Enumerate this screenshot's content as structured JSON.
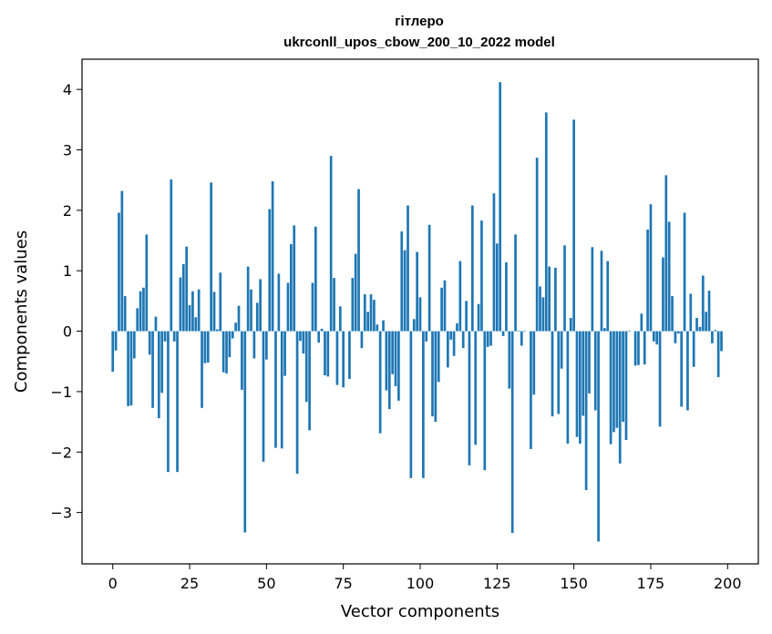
{
  "chart_data": {
    "type": "bar",
    "title_line1": "гітлеро",
    "title_line2": "ukrconll_upos_cbow_200_10_2022 model",
    "xlabel": "Vector components",
    "ylabel": "Components values",
    "xlim": [
      -10,
      210
    ],
    "ylim": [
      -3.85,
      4.5
    ],
    "xticks": [
      0,
      25,
      50,
      75,
      100,
      125,
      150,
      175,
      200
    ],
    "yticks": [
      -3,
      -2,
      -1,
      0,
      1,
      2,
      3,
      4
    ],
    "ytick_labels": [
      "−3",
      "−2",
      "−1",
      "0",
      "1",
      "2",
      "3",
      "4"
    ],
    "bar_color": "#1f77b4",
    "grid": false,
    "values": [
      -0.67,
      -0.32,
      1.96,
      2.32,
      0.58,
      -1.24,
      -1.23,
      -0.45,
      0.38,
      0.66,
      0.72,
      1.6,
      -0.39,
      -1.27,
      0.24,
      -1.44,
      -1.02,
      -0.17,
      -2.33,
      2.51,
      -0.17,
      -2.33,
      0.89,
      1.11,
      1.4,
      0.43,
      0.66,
      0.23,
      0.69,
      -1.27,
      -0.53,
      -0.52,
      2.46,
      0.65,
      0.03,
      0.97,
      -0.68,
      -0.7,
      -0.43,
      -0.12,
      0.14,
      0.42,
      -0.97,
      -3.33,
      1.07,
      0.69,
      -0.45,
      0.47,
      0.86,
      -2.16,
      -0.47,
      2.02,
      2.48,
      -1.93,
      0.95,
      -1.94,
      -0.74,
      0.8,
      1.44,
      1.75,
      -2.36,
      -0.16,
      -0.37,
      -1.17,
      -1.64,
      0.8,
      1.73,
      -0.19,
      0.04,
      -0.73,
      -0.75,
      2.9,
      0.88,
      -0.89,
      0.41,
      -0.93,
      0.0,
      -0.79,
      0.88,
      1.28,
      2.35,
      -0.28,
      0.61,
      0.32,
      0.61,
      0.52,
      0.11,
      -1.69,
      0.18,
      -0.98,
      -1.29,
      -0.71,
      -0.91,
      -1.15,
      1.65,
      1.34,
      2.08,
      -2.43,
      0.2,
      1.31,
      0.56,
      -2.43,
      -0.17,
      1.76,
      -1.41,
      -1.5,
      -0.84,
      0.72,
      0.84,
      -0.6,
      -0.14,
      -0.41,
      0.13,
      1.16,
      -0.28,
      0.5,
      -2.22,
      2.08,
      -1.88,
      0.45,
      1.83,
      -2.3,
      -0.26,
      -0.24,
      2.28,
      1.45,
      4.12,
      -0.08,
      1.14,
      -0.95,
      -3.34,
      1.6,
      0.01,
      -0.24,
      0.01,
      0.0,
      -1.95,
      -1.05,
      2.87,
      0.74,
      0.56,
      3.62,
      1.07,
      -1.41,
      1.05,
      -1.37,
      -0.62,
      1.42,
      -1.86,
      0.22,
      3.5,
      -1.75,
      -1.86,
      -1.4,
      -2.63,
      -1.03,
      1.39,
      -1.31,
      -3.48,
      1.33,
      0.05,
      1.16,
      -1.87,
      -1.67,
      -1.6,
      -2.19,
      -1.5,
      -1.8,
      0.01,
      0.0,
      -0.57,
      -0.56,
      0.29,
      -0.55,
      1.68,
      2.1,
      -0.17,
      -0.22,
      -1.58,
      1.22,
      2.58,
      1.81,
      0.58,
      -0.2,
      -0.04,
      -1.25,
      1.96,
      -1.31,
      0.62,
      -0.59,
      0.22,
      0.07,
      0.92,
      0.32,
      0.67,
      -0.2,
      0.02,
      -0.76,
      -0.33,
      0.0
    ]
  }
}
